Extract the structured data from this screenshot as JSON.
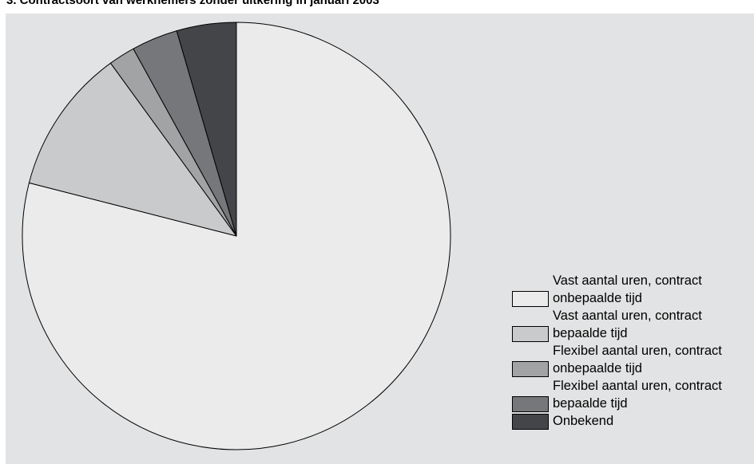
{
  "chart_data": {
    "type": "pie",
    "title": "3. Contractsoort van werknemers zonder uitkering in januari 2003",
    "start_angle": "12 o'clock",
    "direction": "clockwise",
    "legend_position": "bottom-right",
    "series": [
      {
        "name": "Vast aantal uren, contract onbepaalde tijd",
        "value": 79.0,
        "color": "#ebebec"
      },
      {
        "name": "Vast aantal uren, contract bepaalde tijd",
        "value": 11.0,
        "color": "#c9cacc"
      },
      {
        "name": "Flexibel aantal uren, contract onbepaalde tijd",
        "value": 2.0,
        "color": "#a2a3a5"
      },
      {
        "name": "Flexibel aantal uren, contract bepaalde tijd",
        "value": 3.5,
        "color": "#76777a"
      },
      {
        "name": "Onbekend",
        "value": 4.5,
        "color": "#444548"
      }
    ]
  }
}
